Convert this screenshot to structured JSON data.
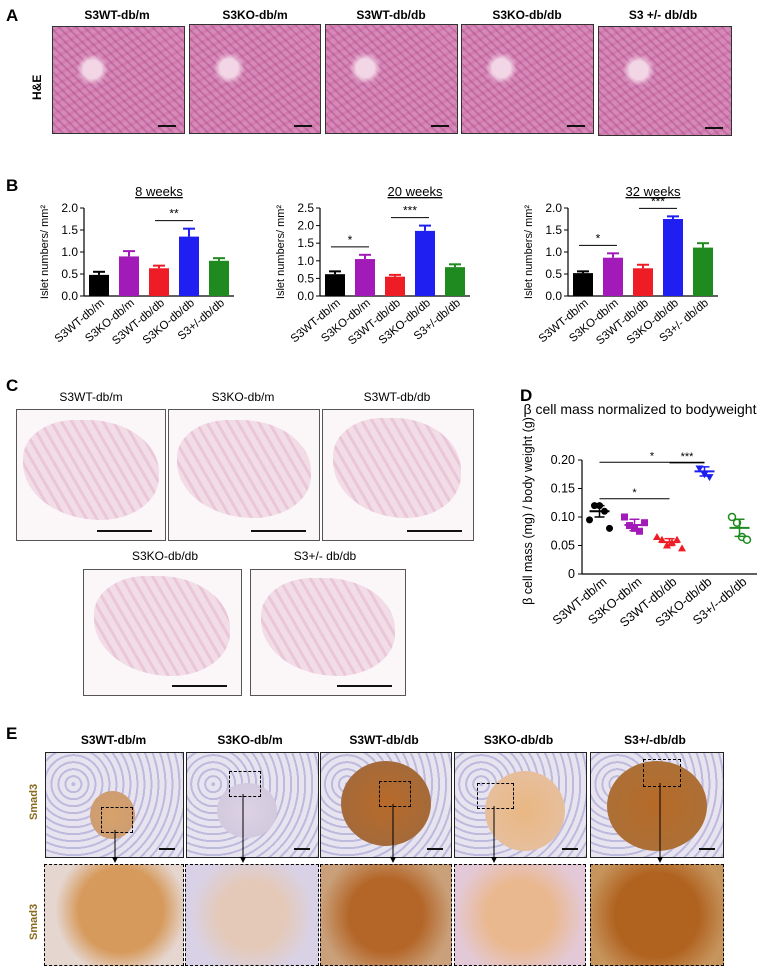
{
  "panels": {
    "A": "A",
    "B": "B",
    "C": "C",
    "D": "D",
    "E": "E"
  },
  "panel_a": {
    "row_label": "H&E",
    "columns": [
      "S3WT-db/m",
      "S3KO-db/m",
      "S3WT-db/db",
      "S3KO-db/db",
      "S3 +/- db/db"
    ]
  },
  "panel_c": {
    "labels": [
      "S3WT-db/m",
      "S3KO-db/m",
      "S3WT-db/db",
      "S3KO-db/db",
      "S3+/- db/db"
    ]
  },
  "panel_e": {
    "row_label": "Smad3",
    "columns": [
      "S3WT-db/m",
      "S3KO-db/m",
      "S3WT-db/db",
      "S3KO-db/db",
      "S3+/-db/db"
    ]
  },
  "colors": {
    "black": "#000000",
    "purple": "#a21ab8",
    "red": "#ee1c24",
    "blue": "#1f1ff2",
    "green": "#1f8a1f"
  },
  "chart_data": [
    {
      "type": "bar",
      "title": "8 weeks",
      "ylabel": "Islet numbers/ mm²",
      "categories": [
        "S3WT-db/m",
        "S3KO-db/m",
        "S3WT-db/db",
        "S3KO-db/db",
        "S3+/-db/db"
      ],
      "values": [
        0.48,
        0.9,
        0.63,
        1.35,
        0.8
      ],
      "errors": [
        0.07,
        0.12,
        0.06,
        0.18,
        0.06
      ],
      "ylim": [
        0,
        2.0
      ],
      "yticks": [
        "0.0",
        "0.5",
        "1.0",
        "1.5",
        "2.0"
      ],
      "significance": [
        {
          "from": 2,
          "to": 3,
          "label": "**"
        }
      ]
    },
    {
      "type": "bar",
      "title": "20 weeks",
      "ylabel": "Islet numbers/ mm²",
      "categories": [
        "S3WT-db/m",
        "S3KO-db/m",
        "S3WT-db/db",
        "S3KO-db/db",
        "S3+/-db/db"
      ],
      "values": [
        0.62,
        1.05,
        0.55,
        1.85,
        0.82
      ],
      "errors": [
        0.08,
        0.12,
        0.05,
        0.15,
        0.08
      ],
      "ylim": [
        0,
        2.5
      ],
      "yticks": [
        "0.0",
        "0.5",
        "1.0",
        "1.5",
        "2.0",
        "2.5"
      ],
      "significance": [
        {
          "from": 0,
          "to": 1,
          "label": "*"
        },
        {
          "from": 2,
          "to": 3,
          "label": "***"
        }
      ]
    },
    {
      "type": "bar",
      "title": "32 weeks",
      "ylabel": "Islet numbers/ mm²",
      "categories": [
        "S3WT-db/m",
        "S3KO-db/m",
        "S3WT-db/db",
        "S3KO-db/db",
        "S3+/- db/db"
      ],
      "values": [
        0.52,
        0.87,
        0.63,
        1.75,
        1.1
      ],
      "errors": [
        0.04,
        0.1,
        0.08,
        0.06,
        0.1
      ],
      "ylim": [
        0,
        2.0
      ],
      "yticks": [
        "0.0",
        "0.5",
        "1.0",
        "1.5",
        "2.0"
      ],
      "significance": [
        {
          "from": 0,
          "to": 1,
          "label": "*"
        },
        {
          "from": 2,
          "to": 3,
          "label": "***"
        }
      ]
    },
    {
      "type": "scatter",
      "title": "β cell mass normalized to bodyweight",
      "ylabel": "β cell mass (mg) / body weight (g)",
      "categories": [
        "S3WT-db/m",
        "S3KO-db/m",
        "S3WT-db/db",
        "S3KO-db/db",
        "S3+/--db/db"
      ],
      "series": [
        {
          "markers": "circle",
          "points": [
            0.095,
            0.12,
            0.12,
            0.11,
            0.08
          ],
          "mean": 0.11,
          "sem": 0.01
        },
        {
          "markers": "square",
          "points": [
            0.1,
            0.085,
            0.08,
            0.075,
            0.09
          ],
          "mean": 0.086,
          "sem": 0.01
        },
        {
          "markers": "triangle",
          "points": [
            0.065,
            0.06,
            0.05,
            0.055,
            0.06,
            0.045
          ],
          "mean": 0.056,
          "sem": 0.006
        },
        {
          "markers": "triangle-down",
          "points": [
            0.185,
            0.175,
            0.17
          ],
          "mean": 0.18,
          "sem": 0.008
        },
        {
          "markers": "circle-open",
          "points": [
            0.1,
            0.09,
            0.065,
            0.06
          ],
          "mean": 0.081,
          "sem": 0.015
        }
      ],
      "ylim": [
        0,
        0.2
      ],
      "yticks": [
        "0",
        "0.05",
        "0.10",
        "0.15",
        "0.20"
      ],
      "significance": [
        {
          "from": 0,
          "to": 2,
          "label": "*"
        },
        {
          "from": 0,
          "to": 3,
          "label": "*"
        },
        {
          "from": 2,
          "to": 3,
          "label": "***"
        }
      ]
    }
  ]
}
